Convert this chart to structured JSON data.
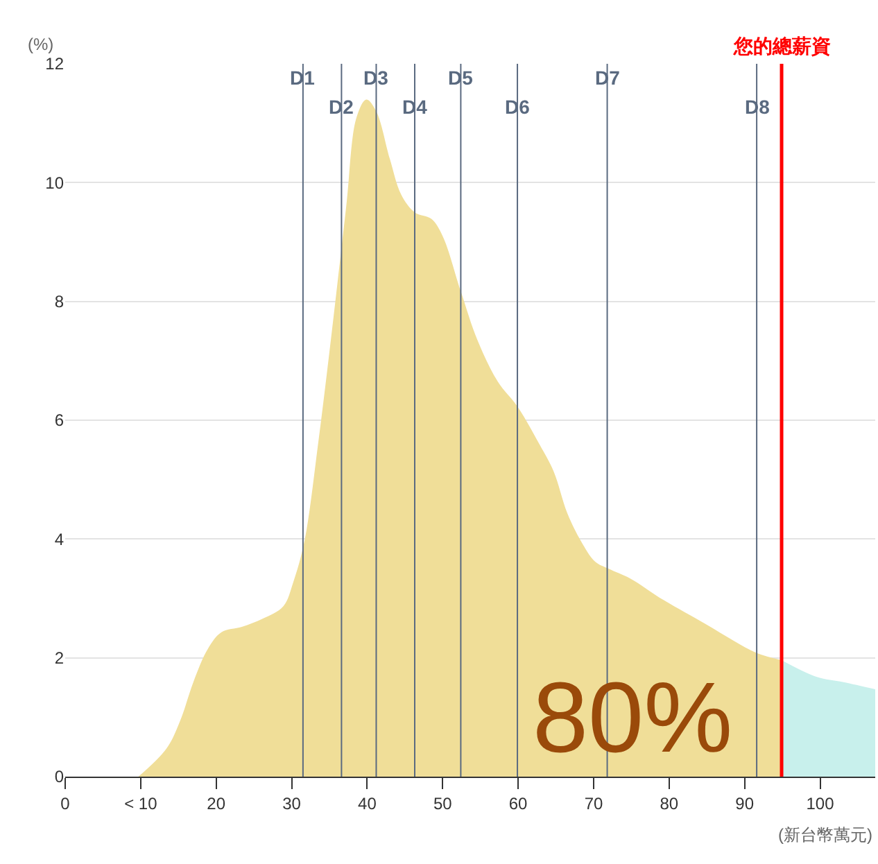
{
  "chart_data": {
    "type": "area",
    "xlabel": "(新台幣萬元)",
    "ylabel": "(%)",
    "xlim": [
      0,
      107.3
    ],
    "ylim": [
      0,
      12
    ],
    "xticks": [
      0,
      {
        "value": 10,
        "label": "< 10"
      },
      20,
      30,
      40,
      50,
      60,
      70,
      80,
      90,
      100
    ],
    "yticks": [
      0,
      2,
      4,
      6,
      8,
      10,
      12
    ],
    "grid": "y",
    "series": [
      {
        "color": "#f0de98",
        "x": [
          9.7,
          13.4,
          15.2,
          17,
          18.9,
          20.7,
          23.4,
          26.2,
          28.9,
          30.2,
          31.7,
          33.5,
          35.3,
          37.2,
          38.6,
          39.9,
          41.2,
          43,
          44.5,
          46.3,
          48.5,
          50,
          52.4,
          54.6,
          57.3,
          59.9,
          62.8,
          64.7,
          66.5,
          68.3,
          70.2,
          72,
          74.8,
          79.3,
          84.8,
          88.5,
          91.6,
          94.9
        ],
        "values": [
          0,
          0.47,
          0.93,
          1.6,
          2.15,
          2.43,
          2.52,
          2.66,
          2.87,
          3.27,
          3.97,
          5.6,
          7.47,
          9.57,
          11.1,
          11.4,
          11.2,
          10.4,
          9.8,
          9.5,
          9.39,
          9.1,
          8.17,
          7.35,
          6.65,
          6.23,
          5.6,
          5.14,
          4.44,
          3.97,
          3.62,
          3.5,
          3.34,
          2.97,
          2.57,
          2.29,
          2.08,
          1.96
        ]
      },
      {
        "color": "#c8f0ec",
        "x": [
          94.9,
          99.5,
          103.1,
          107.3
        ],
        "values": [
          1.96,
          1.68,
          1.59,
          1.47
        ]
      }
    ],
    "ref_lines": [
      {
        "axis": "x",
        "value": 31.5,
        "label": "D1",
        "color": "#5a6a80"
      },
      {
        "axis": "x",
        "value": 36.6,
        "label": "D2",
        "color": "#5a6a80"
      },
      {
        "axis": "x",
        "value": 41.2,
        "label": "D3",
        "color": "#5a6a80"
      },
      {
        "axis": "x",
        "value": 46.3,
        "label": "D4",
        "color": "#5a6a80"
      },
      {
        "axis": "x",
        "value": 52.4,
        "label": "D5",
        "color": "#5a6a80"
      },
      {
        "axis": "x",
        "value": 59.9,
        "label": "D6",
        "color": "#5a6a80"
      },
      {
        "axis": "x",
        "value": 71.8,
        "label": "D7",
        "color": "#5a6a80"
      },
      {
        "axis": "x",
        "value": 91.6,
        "label": "D8",
        "color": "#5a6a80"
      },
      {
        "axis": "x",
        "value": 94.9,
        "label": "您的總薪資",
        "color": "#ff0000"
      }
    ],
    "annotations": [
      "80%"
    ]
  }
}
